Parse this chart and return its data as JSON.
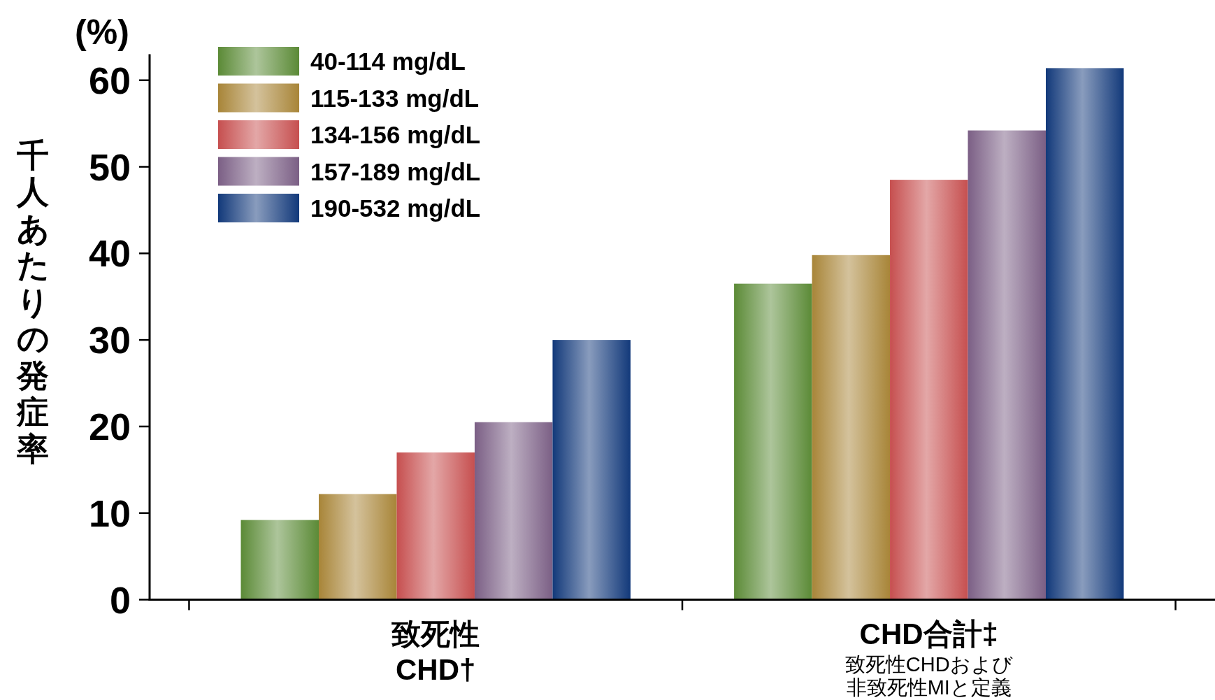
{
  "chart_data": {
    "type": "bar",
    "ylabel": "千人あたりの発症率",
    "categories": [
      "致死性\nCHD†",
      "CHD合計‡"
    ],
    "series": [
      {
        "name": "40-114 mg/dL",
        "color": "#5b8a36",
        "values": [
          9.2,
          36.5
        ]
      },
      {
        "name": "115-133 mg/dL",
        "color": "#a88538",
        "values": [
          12.2,
          39.8
        ]
      },
      {
        "name": "134-156 mg/dL",
        "color": "#c64f4f",
        "values": [
          17.0,
          48.5
        ]
      },
      {
        "name": "157-189 mg/dL",
        "color": "#7b5f85",
        "values": [
          20.5,
          54.2
        ]
      },
      {
        "name": "190-532 mg/dL",
        "color": "#12397a",
        "values": [
          30.0,
          61.4
        ]
      }
    ],
    "ylim": [
      0,
      63
    ],
    "yticks": [
      0,
      10,
      20,
      30,
      40,
      50,
      60
    ],
    "legend": "top left",
    "annotations": [
      "(%)",
      "致死性CHDおよび非致死性MIと定義"
    ]
  }
}
